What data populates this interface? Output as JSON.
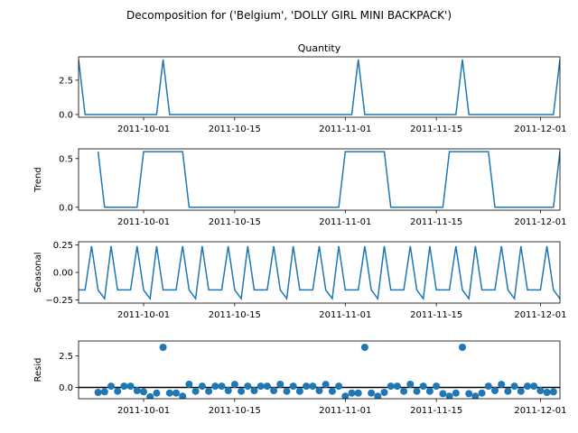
{
  "figure": {
    "suptitle": "Decomposition for ('Belgium', 'DOLLY GIRL MINI BACKPACK')"
  },
  "chart_data": {
    "type": "line",
    "x_start": "2011-09-21",
    "days": 74,
    "xticks": [
      {
        "day": 10,
        "label": "2011-10-01"
      },
      {
        "day": 24,
        "label": "2011-10-15"
      },
      {
        "day": 41,
        "label": "2011-11-01"
      },
      {
        "day": 55,
        "label": "2011-11-15"
      },
      {
        "day": 71,
        "label": "2011-12-01"
      }
    ],
    "panels": [
      {
        "id": "observed",
        "title": "Quantity",
        "ylabel": "",
        "kind": "line",
        "ylim": [
          -0.2,
          4.2
        ],
        "yticks": [
          0,
          2.5
        ],
        "ytick_labels": [
          "0.0",
          "2.5"
        ],
        "x": [
          0,
          1,
          12,
          13,
          14,
          42,
          43,
          44,
          58,
          59,
          60,
          73,
          74
        ],
        "values": [
          4,
          0,
          0,
          4,
          0,
          0,
          4,
          0,
          0,
          4,
          0,
          0,
          4
        ]
      },
      {
        "id": "trend",
        "title": "",
        "ylabel": "Trend",
        "kind": "line",
        "ylim": [
          -0.03,
          0.6
        ],
        "yticks": [
          0,
          0.5
        ],
        "ytick_labels": [
          "0.0",
          "0.5"
        ],
        "x": [
          3,
          4,
          9,
          10,
          16,
          17,
          40,
          41,
          47,
          48,
          56,
          57,
          63,
          64,
          73,
          74
        ],
        "values": [
          0.571,
          0,
          0,
          0.571,
          0.571,
          0,
          0,
          0.571,
          0.571,
          0,
          0,
          0.571,
          0.571,
          0,
          0,
          0.571
        ]
      },
      {
        "id": "seasonal",
        "title": "",
        "ylabel": "Seasonal",
        "kind": "line",
        "ylim": [
          -0.28,
          0.28
        ],
        "yticks": [
          -0.25,
          0,
          0.25
        ],
        "ytick_labels": [
          "−0.25",
          "0.00",
          "0.25"
        ],
        "pattern": [
          -0.16,
          -0.16,
          0.24,
          -0.16,
          -0.24,
          0.24,
          -0.16
        ],
        "pattern_start": 0
      },
      {
        "id": "resid",
        "title": "",
        "ylabel": "Resid",
        "kind": "scatter",
        "ylim": [
          -0.9,
          3.7
        ],
        "yticks": [
          0,
          2.5
        ],
        "ytick_labels": [
          "0.0",
          "2.5"
        ],
        "zero_line": true,
        "x": [
          3,
          4,
          5,
          6,
          7,
          8,
          9,
          10,
          11,
          12,
          13,
          14,
          15,
          16,
          17,
          18,
          19,
          20,
          21,
          22,
          23,
          24,
          25,
          26,
          27,
          28,
          29,
          30,
          31,
          32,
          33,
          34,
          35,
          36,
          37,
          38,
          39,
          40,
          41,
          42,
          43,
          44,
          45,
          46,
          47,
          48,
          49,
          50,
          51,
          52,
          53,
          54,
          55,
          56,
          57,
          58,
          59,
          60,
          61,
          62,
          63,
          64,
          65,
          66,
          67,
          68,
          69,
          70,
          71,
          72,
          73
        ],
        "values": [
          -0.4,
          -0.35,
          0.1,
          -0.3,
          0.1,
          0.1,
          -0.25,
          -0.35,
          -0.75,
          -0.45,
          3.2,
          -0.45,
          -0.45,
          -0.7,
          0.25,
          -0.3,
          0.1,
          -0.3,
          0.1,
          0.1,
          -0.25,
          0.24,
          -0.3,
          0.1,
          -0.25,
          0.1,
          0.1,
          -0.25,
          0.25,
          -0.3,
          0.1,
          -0.3,
          0.1,
          0.1,
          -0.25,
          0.24,
          -0.3,
          0.1,
          -0.7,
          -0.45,
          -0.45,
          3.2,
          -0.45,
          -0.7,
          -0.4,
          0.1,
          0.1,
          -0.3,
          0.25,
          -0.3,
          0.1,
          -0.3,
          0.1,
          -0.5,
          -0.7,
          -0.45,
          3.2,
          -0.5,
          -0.7,
          -0.45,
          0.1,
          -0.25,
          0.24,
          -0.3,
          0.1,
          -0.3,
          0.1,
          0.1,
          -0.25,
          -0.4,
          -0.35
        ]
      }
    ]
  }
}
